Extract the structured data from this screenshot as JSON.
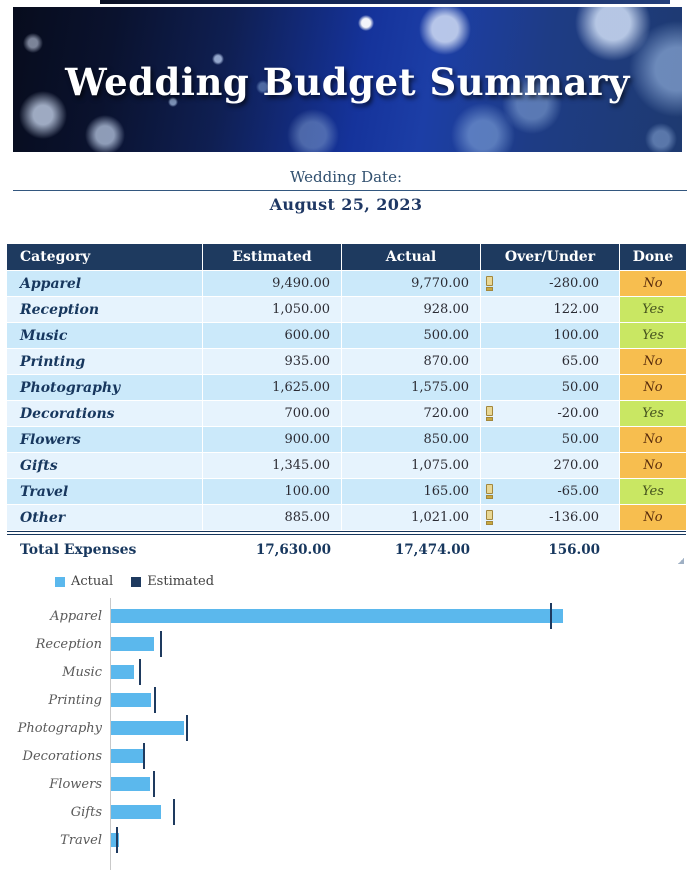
{
  "banner": {
    "title": "Wedding Budget Summary"
  },
  "date_section": {
    "label": "Wedding Date:",
    "value": "August 25, 2023"
  },
  "table": {
    "columns": [
      "Category",
      "Estimated",
      "Actual",
      "Over/Under",
      "Done"
    ],
    "warning_icon": "gold-exclamation-mark",
    "rows": [
      {
        "category": "Apparel",
        "estimated": "9,490.00",
        "actual": "9,770.00",
        "over_under": "-280.00",
        "warning": true,
        "done": "No"
      },
      {
        "category": "Reception",
        "estimated": "1,050.00",
        "actual": "928.00",
        "over_under": "122.00",
        "warning": false,
        "done": "Yes"
      },
      {
        "category": "Music",
        "estimated": "600.00",
        "actual": "500.00",
        "over_under": "100.00",
        "warning": false,
        "done": "Yes"
      },
      {
        "category": "Printing",
        "estimated": "935.00",
        "actual": "870.00",
        "over_under": "65.00",
        "warning": false,
        "done": "No"
      },
      {
        "category": "Photography",
        "estimated": "1,625.00",
        "actual": "1,575.00",
        "over_under": "50.00",
        "warning": false,
        "done": "No"
      },
      {
        "category": "Decorations",
        "estimated": "700.00",
        "actual": "720.00",
        "over_under": "-20.00",
        "warning": true,
        "done": "Yes"
      },
      {
        "category": "Flowers",
        "estimated": "900.00",
        "actual": "850.00",
        "over_under": "50.00",
        "warning": false,
        "done": "No"
      },
      {
        "category": "Gifts",
        "estimated": "1,345.00",
        "actual": "1,075.00",
        "over_under": "270.00",
        "warning": false,
        "done": "No"
      },
      {
        "category": "Travel",
        "estimated": "100.00",
        "actual": "165.00",
        "over_under": "-65.00",
        "warning": true,
        "done": "Yes"
      },
      {
        "category": "Other",
        "estimated": "885.00",
        "actual": "1,021.00",
        "over_under": "-136.00",
        "warning": true,
        "done": "No"
      }
    ],
    "total": {
      "label": "Total Expenses",
      "estimated": "17,630.00",
      "actual": "17,474.00",
      "over_under": "156.00"
    }
  },
  "chart_data": {
    "type": "bar",
    "orientation": "horizontal",
    "legend": [
      "Actual",
      "Estimated"
    ],
    "legend_position": "top-left",
    "categories": [
      "Apparel",
      "Reception",
      "Music",
      "Printing",
      "Photography",
      "Decorations",
      "Flowers",
      "Gifts",
      "Travel"
    ],
    "series": [
      {
        "name": "Actual",
        "style": "bar",
        "values": [
          9770,
          928,
          500,
          870,
          1575,
          720,
          850,
          1075,
          165
        ]
      },
      {
        "name": "Estimated",
        "style": "tick-marker",
        "values": [
          9490,
          1050,
          600,
          935,
          1625,
          700,
          900,
          1345,
          100
        ]
      }
    ],
    "axis_max": 12000,
    "grid": false,
    "colors": {
      "actual": "#5BB8ED",
      "estimated": "#1E3A5F"
    }
  },
  "colors": {
    "header_bg": "#1E3A5F",
    "row_odd_bg": "#CBE9FA",
    "row_even_bg": "#E6F3FD",
    "done_no_bg": "#F7BE4F",
    "done_no_text": "#5A2D0C",
    "done_yes_bg": "#C9E763",
    "done_yes_text": "#44511D",
    "accent_text": "#1F3864"
  }
}
